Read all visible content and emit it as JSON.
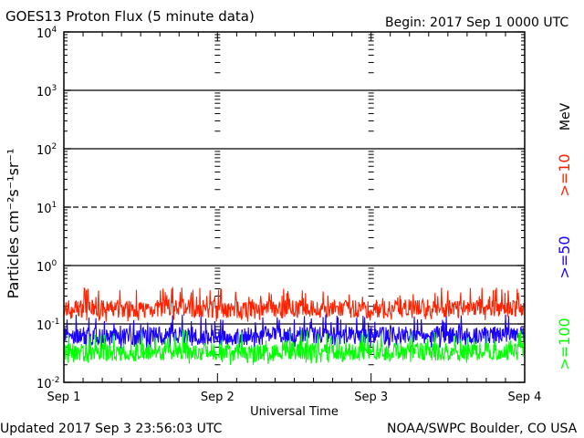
{
  "header": {
    "title": "GOES13 Proton Flux (5 minute data)",
    "begin": "Begin: 2017 Sep 1 0000 UTC"
  },
  "footer": {
    "updated": "Updated 2017 Sep  3 23:56:03 UTC",
    "credit": "NOAA/SWPC Boulder, CO USA"
  },
  "right_labels": {
    "unit": "MeV",
    "ch10": ">=10",
    "ch50": ">=50",
    "ch100": ">=100"
  },
  "colors": {
    "ch10": "#ff2200",
    "ch50": "#1a00ff",
    "ch100": "#00ff00",
    "frame": "#000000"
  },
  "chart_data": {
    "type": "line",
    "title": "GOES13 Proton Flux (5 minute data)",
    "xlabel": "Universal Time",
    "ylabel": "Particles cm⁻²s⁻¹sr⁻¹",
    "y_scale": "log",
    "ylim": [
      0.01,
      10000
    ],
    "grid": true,
    "y_ticks": [
      {
        "value": 0.01,
        "base": "10",
        "exp": "-2"
      },
      {
        "value": 0.1,
        "base": "10",
        "exp": "-1"
      },
      {
        "value": 1,
        "base": "10",
        "exp": "0"
      },
      {
        "value": 10,
        "base": "10",
        "exp": "1"
      },
      {
        "value": 100,
        "base": "10",
        "exp": "2"
      },
      {
        "value": 1000,
        "base": "10",
        "exp": "3"
      },
      {
        "value": 10000,
        "base": "10",
        "exp": "4"
      }
    ],
    "reference_lines": [
      {
        "value": 10,
        "style": "dashed"
      }
    ],
    "x_ticks": [
      "Sep 1",
      "Sep 2",
      "Sep 3",
      "Sep 4"
    ],
    "x_range": [
      "2017-09-01 00:00",
      "2017-09-04 00:00"
    ],
    "series": [
      {
        "name": ">=10 MeV",
        "color": "#ff2200",
        "x": [
          "Sep 1",
          "Sep 1 06h",
          "Sep 1 12h",
          "Sep 1 18h",
          "Sep 2",
          "Sep 2 06h",
          "Sep 2 12h",
          "Sep 2 18h",
          "Sep 3",
          "Sep 3 06h",
          "Sep 3 12h",
          "Sep 3 18h",
          "Sep 4"
        ],
        "values": [
          0.19,
          0.18,
          0.18,
          0.19,
          0.18,
          0.17,
          0.18,
          0.18,
          0.18,
          0.19,
          0.18,
          0.19,
          0.18
        ]
      },
      {
        "name": ">=50 MeV",
        "color": "#1a00ff",
        "x": [
          "Sep 1",
          "Sep 1 06h",
          "Sep 1 12h",
          "Sep 1 18h",
          "Sep 2",
          "Sep 2 06h",
          "Sep 2 12h",
          "Sep 2 18h",
          "Sep 3",
          "Sep 3 06h",
          "Sep 3 12h",
          "Sep 3 18h",
          "Sep 4"
        ],
        "values": [
          0.065,
          0.06,
          0.062,
          0.065,
          0.06,
          0.062,
          0.065,
          0.063,
          0.062,
          0.066,
          0.064,
          0.063,
          0.065
        ]
      },
      {
        "name": ">=100 MeV",
        "color": "#00ff00",
        "x": [
          "Sep 1",
          "Sep 1 06h",
          "Sep 1 12h",
          "Sep 1 18h",
          "Sep 2",
          "Sep 2 06h",
          "Sep 2 12h",
          "Sep 2 18h",
          "Sep 3",
          "Sep 3 06h",
          "Sep 3 12h",
          "Sep 3 18h",
          "Sep 4"
        ],
        "values": [
          0.034,
          0.032,
          0.033,
          0.035,
          0.033,
          0.032,
          0.034,
          0.034,
          0.033,
          0.034,
          0.033,
          0.034,
          0.034
        ]
      }
    ]
  }
}
